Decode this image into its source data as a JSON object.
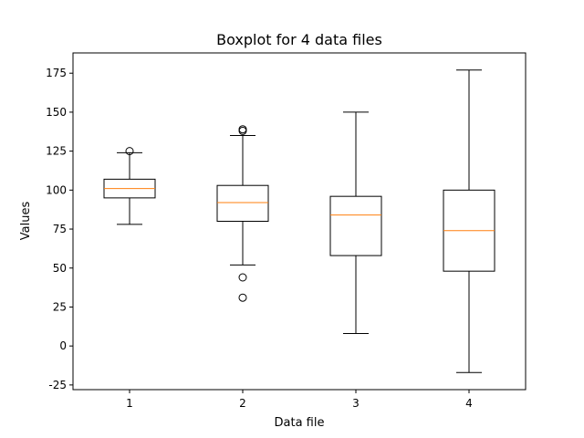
{
  "chart_data": {
    "type": "boxplot",
    "title": "Boxplot for 4 data files",
    "xlabel": "Data file",
    "ylabel": "Values",
    "categories": [
      "1",
      "2",
      "3",
      "4"
    ],
    "ylim": [
      -28,
      188
    ],
    "yticks": [
      -25,
      0,
      25,
      50,
      75,
      100,
      125,
      150,
      175
    ],
    "grid": false,
    "colors": {
      "box": "#000000",
      "median": "#ff7f0e",
      "flier": "#000000"
    },
    "boxes": [
      {
        "label": "1",
        "whisker_low": 78,
        "q1": 95,
        "median": 101,
        "q3": 107,
        "whisker_high": 124,
        "fliers": [
          125
        ]
      },
      {
        "label": "2",
        "whisker_low": 52,
        "q1": 80,
        "median": 92,
        "q3": 103,
        "whisker_high": 135,
        "fliers": [
          138,
          139,
          44,
          31
        ]
      },
      {
        "label": "3",
        "whisker_low": 8,
        "q1": 58,
        "median": 84,
        "q3": 96,
        "whisker_high": 150,
        "fliers": []
      },
      {
        "label": "4",
        "whisker_low": -17,
        "q1": 48,
        "median": 74,
        "q3": 100,
        "whisker_high": 177,
        "fliers": []
      }
    ]
  }
}
